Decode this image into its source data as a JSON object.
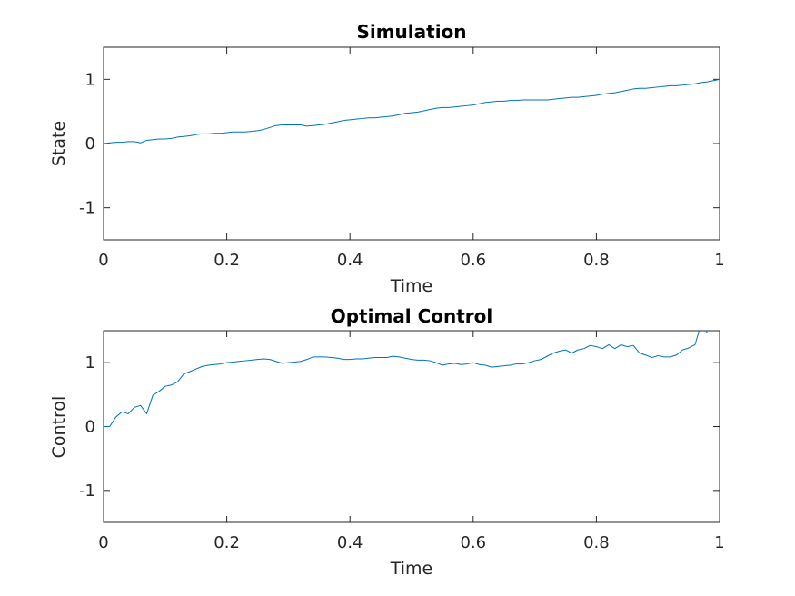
{
  "colors": {
    "line": "#0072bd",
    "axes": "#262626",
    "background": "#ffffff"
  },
  "chart_data": [
    {
      "type": "line",
      "title": "Simulation",
      "xlabel": "Time",
      "ylabel": "State",
      "xlim": [
        0,
        1
      ],
      "ylim": [
        -1.5,
        1.5
      ],
      "xticks": [
        0,
        0.2,
        0.4,
        0.6,
        0.8,
        1
      ],
      "xticklabels": [
        "0",
        "0.2",
        "0.4",
        "0.6",
        "0.8",
        "1"
      ],
      "yticks": [
        -1,
        0,
        1
      ],
      "yticklabels": [
        "-1",
        "0",
        "1"
      ],
      "grid": false,
      "series": [
        {
          "x": [
            0,
            0.01,
            0.02,
            0.03,
            0.04,
            0.05,
            0.06,
            0.07,
            0.08,
            0.09,
            0.1,
            0.11,
            0.12,
            0.13,
            0.14,
            0.15,
            0.16,
            0.17,
            0.18,
            0.19,
            0.2,
            0.21,
            0.22,
            0.23,
            0.24,
            0.25,
            0.26,
            0.27,
            0.28,
            0.29,
            0.3,
            0.31,
            0.32,
            0.33,
            0.34,
            0.35,
            0.36,
            0.37,
            0.38,
            0.39,
            0.4,
            0.41,
            0.42,
            0.43,
            0.44,
            0.45,
            0.46,
            0.47,
            0.48,
            0.49,
            0.5,
            0.51,
            0.52,
            0.53,
            0.54,
            0.55,
            0.56,
            0.57,
            0.58,
            0.59,
            0.6,
            0.61,
            0.62,
            0.63,
            0.64,
            0.65,
            0.66,
            0.67,
            0.68,
            0.69,
            0.7,
            0.71,
            0.72,
            0.73,
            0.74,
            0.75,
            0.76,
            0.77,
            0.78,
            0.79,
            0.8,
            0.81,
            0.82,
            0.83,
            0.84,
            0.85,
            0.86,
            0.87,
            0.88,
            0.89,
            0.9,
            0.91,
            0.92,
            0.93,
            0.94,
            0.95,
            0.96,
            0.97,
            0.98,
            0.99,
            1.0
          ],
          "y": [
            0.0,
            0.01,
            0.02,
            0.02,
            0.03,
            0.03,
            0.01,
            0.05,
            0.06,
            0.07,
            0.07,
            0.08,
            0.1,
            0.11,
            0.12,
            0.14,
            0.15,
            0.15,
            0.16,
            0.16,
            0.17,
            0.18,
            0.18,
            0.18,
            0.19,
            0.2,
            0.22,
            0.25,
            0.28,
            0.29,
            0.29,
            0.29,
            0.29,
            0.27,
            0.28,
            0.29,
            0.3,
            0.32,
            0.34,
            0.36,
            0.37,
            0.38,
            0.39,
            0.4,
            0.4,
            0.41,
            0.42,
            0.43,
            0.45,
            0.47,
            0.48,
            0.49,
            0.51,
            0.53,
            0.55,
            0.56,
            0.56,
            0.57,
            0.58,
            0.59,
            0.6,
            0.62,
            0.64,
            0.65,
            0.66,
            0.66,
            0.67,
            0.67,
            0.68,
            0.68,
            0.68,
            0.68,
            0.68,
            0.69,
            0.7,
            0.71,
            0.72,
            0.72,
            0.73,
            0.74,
            0.75,
            0.77,
            0.78,
            0.79,
            0.81,
            0.83,
            0.85,
            0.86,
            0.86,
            0.87,
            0.88,
            0.89,
            0.9,
            0.9,
            0.91,
            0.92,
            0.93,
            0.95,
            0.96,
            0.98,
            1.0
          ]
        }
      ]
    },
    {
      "type": "line",
      "title": "Optimal Control",
      "xlabel": "Time",
      "ylabel": "Control",
      "xlim": [
        0,
        1
      ],
      "ylim": [
        -1.5,
        1.5
      ],
      "xticks": [
        0,
        0.2,
        0.4,
        0.6,
        0.8,
        1
      ],
      "xticklabels": [
        "0",
        "0.2",
        "0.4",
        "0.6",
        "0.8",
        "1"
      ],
      "yticks": [
        -1,
        0,
        1
      ],
      "yticklabels": [
        "-1",
        "0",
        "1"
      ],
      "grid": false,
      "series": [
        {
          "x": [
            0,
            0.01,
            0.02,
            0.03,
            0.04,
            0.05,
            0.06,
            0.07,
            0.08,
            0.09,
            0.1,
            0.11,
            0.12,
            0.13,
            0.14,
            0.15,
            0.16,
            0.17,
            0.18,
            0.19,
            0.2,
            0.21,
            0.22,
            0.23,
            0.24,
            0.25,
            0.26,
            0.27,
            0.28,
            0.29,
            0.3,
            0.31,
            0.32,
            0.33,
            0.34,
            0.35,
            0.36,
            0.37,
            0.38,
            0.39,
            0.4,
            0.41,
            0.42,
            0.43,
            0.44,
            0.45,
            0.46,
            0.47,
            0.48,
            0.49,
            0.5,
            0.51,
            0.52,
            0.53,
            0.54,
            0.55,
            0.56,
            0.57,
            0.58,
            0.59,
            0.6,
            0.61,
            0.62,
            0.63,
            0.64,
            0.65,
            0.66,
            0.67,
            0.68,
            0.69,
            0.7,
            0.71,
            0.72,
            0.73,
            0.74,
            0.75,
            0.76,
            0.77,
            0.78,
            0.79,
            0.8,
            0.81,
            0.82,
            0.83,
            0.84,
            0.85,
            0.86,
            0.87,
            0.88,
            0.89,
            0.9,
            0.91,
            0.92,
            0.93,
            0.94,
            0.95,
            0.96,
            0.97,
            0.98
          ],
          "y": [
            0.0,
            0.0,
            0.15,
            0.23,
            0.2,
            0.3,
            0.33,
            0.2,
            0.49,
            0.55,
            0.63,
            0.65,
            0.7,
            0.82,
            0.86,
            0.9,
            0.94,
            0.96,
            0.97,
            0.98,
            1.0,
            1.01,
            1.02,
            1.03,
            1.04,
            1.05,
            1.06,
            1.05,
            1.02,
            0.99,
            1.0,
            1.01,
            1.02,
            1.05,
            1.09,
            1.09,
            1.09,
            1.08,
            1.07,
            1.05,
            1.05,
            1.06,
            1.06,
            1.07,
            1.08,
            1.08,
            1.08,
            1.1,
            1.09,
            1.07,
            1.05,
            1.04,
            1.04,
            1.03,
            1.0,
            0.96,
            0.98,
            0.99,
            0.97,
            0.98,
            1.0,
            0.97,
            0.96,
            0.93,
            0.94,
            0.95,
            0.96,
            0.98,
            0.98,
            1.0,
            1.03,
            1.05,
            1.1,
            1.15,
            1.18,
            1.2,
            1.15,
            1.2,
            1.22,
            1.27,
            1.25,
            1.22,
            1.28,
            1.22,
            1.28,
            1.25,
            1.27,
            1.15,
            1.12,
            1.08,
            1.11,
            1.09,
            1.09,
            1.12,
            1.2,
            1.23,
            1.28,
            1.6,
            1.47
          ]
        }
      ]
    }
  ]
}
